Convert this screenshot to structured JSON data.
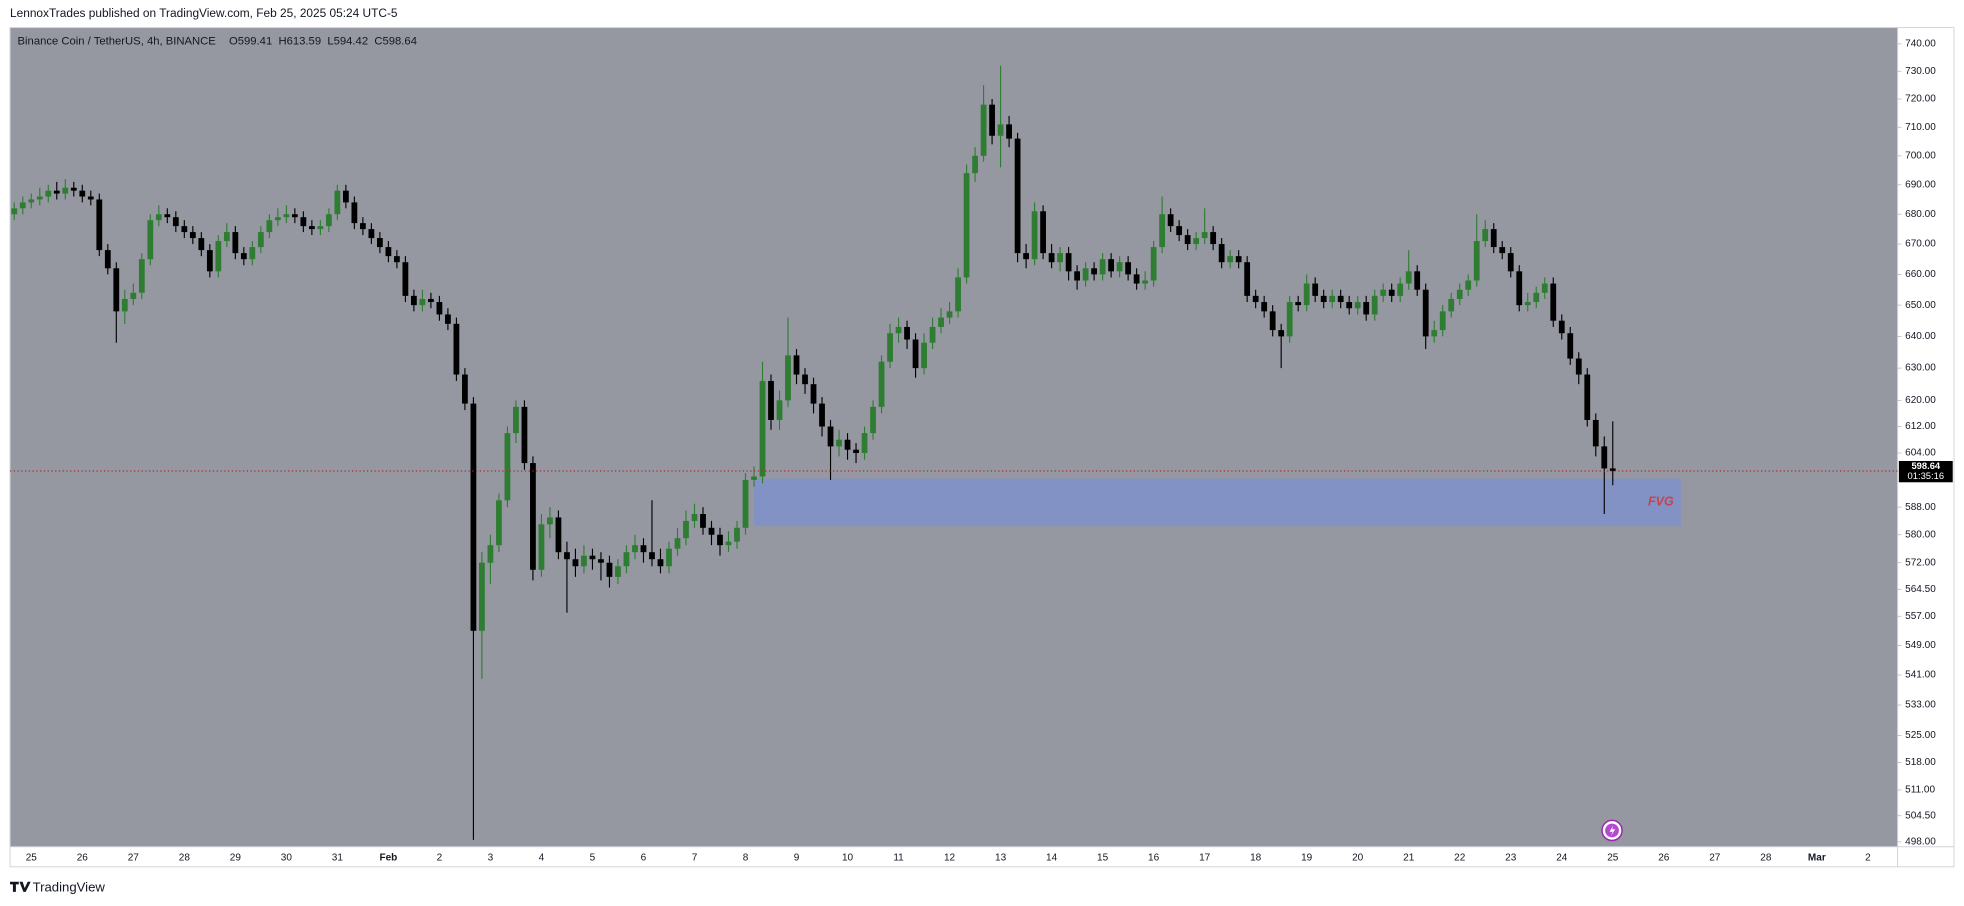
{
  "header": {
    "publisher": "LennoxTrades published on TradingView.com, Feb 25, 2025 05:24 UTC-5"
  },
  "footer": {
    "brand": "TradingView"
  },
  "chart_data": {
    "type": "candlestick",
    "title": "Binance Coin / TetherUS, 4h, BINANCE",
    "ohlc_labels": [
      "O",
      "H",
      "L",
      "C"
    ],
    "background": "#9598a1",
    "up_color": "#2e7d32",
    "down_color": "#000000",
    "price_line_color": "#b22833",
    "log_scale": true,
    "ylim": [
      496.8,
      746
    ],
    "yticks": [
      {
        "value": 740,
        "label": "740.00"
      },
      {
        "value": 730,
        "label": "730.00"
      },
      {
        "value": 720,
        "label": "720.00"
      },
      {
        "value": 710,
        "label": "710.00"
      },
      {
        "value": 700,
        "label": "700.00"
      },
      {
        "value": 690,
        "label": "690.00"
      },
      {
        "value": 680,
        "label": "680.00"
      },
      {
        "value": 670,
        "label": "670.00"
      },
      {
        "value": 660,
        "label": "660.00"
      },
      {
        "value": 650,
        "label": "650.00"
      },
      {
        "value": 640,
        "label": "640.00"
      },
      {
        "value": 630,
        "label": "630.00"
      },
      {
        "value": 620,
        "label": "620.00"
      },
      {
        "value": 612,
        "label": "612.00"
      },
      {
        "value": 604,
        "label": "604.00"
      },
      {
        "value": 588,
        "label": "588.00"
      },
      {
        "value": 580,
        "label": "580.00"
      },
      {
        "value": 572,
        "label": "572.00"
      },
      {
        "value": 564.5,
        "label": "564.50"
      },
      {
        "value": 557,
        "label": "557.00"
      },
      {
        "value": 549,
        "label": "549.00"
      },
      {
        "value": 541,
        "label": "541.00"
      },
      {
        "value": 533,
        "label": "533.00"
      },
      {
        "value": 525,
        "label": "525.00"
      },
      {
        "value": 518,
        "label": "518.00"
      },
      {
        "value": 511,
        "label": "511.00"
      },
      {
        "value": 504.5,
        "label": "504.50"
      },
      {
        "value": 498,
        "label": "498.00"
      }
    ],
    "countdown": "01:35:16",
    "zone": {
      "label": "FVG",
      "top": 596.4,
      "bottom": 582.5,
      "color": "#8392c4",
      "label_color": "#c2454f"
    },
    "categories": [
      null,
      null,
      "25",
      null,
      null,
      null,
      null,
      null,
      "26",
      null,
      null,
      null,
      null,
      null,
      "27",
      null,
      null,
      null,
      null,
      null,
      "28",
      null,
      null,
      null,
      null,
      null,
      "29",
      null,
      null,
      null,
      null,
      null,
      "30",
      null,
      null,
      null,
      null,
      null,
      "31",
      null,
      null,
      null,
      null,
      null,
      "Feb",
      null,
      null,
      null,
      null,
      null,
      "2",
      null,
      null,
      null,
      null,
      null,
      "3",
      null,
      null,
      null,
      null,
      null,
      "4",
      null,
      null,
      null,
      null,
      null,
      "5",
      null,
      null,
      null,
      null,
      null,
      "6",
      null,
      null,
      null,
      null,
      null,
      "7",
      null,
      null,
      null,
      null,
      null,
      "8",
      null,
      null,
      null,
      null,
      null,
      "9",
      null,
      null,
      null,
      null,
      null,
      "10",
      null,
      null,
      null,
      null,
      null,
      "11",
      null,
      null,
      null,
      null,
      null,
      "12",
      null,
      null,
      null,
      null,
      null,
      "13",
      null,
      null,
      null,
      null,
      null,
      "14",
      null,
      null,
      null,
      null,
      null,
      "15",
      null,
      null,
      null,
      null,
      null,
      "16",
      null,
      null,
      null,
      null,
      null,
      "17",
      null,
      null,
      null,
      null,
      null,
      "18",
      null,
      null,
      null,
      null,
      null,
      "19",
      null,
      null,
      null,
      null,
      null,
      "20",
      null,
      null,
      null,
      null,
      null,
      "21",
      null,
      null,
      null,
      null,
      null,
      "22",
      null,
      null,
      null,
      null,
      null,
      "23",
      null,
      null,
      null,
      null,
      null,
      "24",
      null,
      null,
      null,
      null,
      null,
      "25",
      null,
      null,
      null,
      null,
      null,
      "26",
      null,
      null,
      null,
      null,
      null,
      "27",
      null,
      null,
      null,
      null,
      null,
      "28",
      null,
      null,
      null,
      null,
      null,
      "Mar",
      null,
      null,
      null,
      null,
      null,
      "2",
      null,
      null,
      null
    ],
    "open": [
      680,
      682,
      684,
      685,
      686,
      688,
      687,
      689,
      688,
      686,
      685,
      668,
      662,
      648,
      652,
      654,
      665,
      678,
      680,
      679,
      676,
      674,
      672,
      668,
      661,
      671,
      674,
      667,
      665,
      669,
      674,
      678,
      679,
      680,
      679,
      676,
      675,
      676,
      680,
      688,
      684,
      677,
      675,
      672,
      669,
      666,
      664,
      653,
      650,
      652,
      651,
      647,
      644,
      628,
      619,
      553,
      572,
      577,
      590,
      610,
      618,
      601,
      570,
      583,
      585,
      575,
      573,
      571,
      574,
      573,
      572,
      568,
      571,
      575,
      577,
      575,
      573,
      571,
      576,
      579,
      584,
      586,
      582,
      580,
      577,
      578,
      582,
      596,
      597,
      626,
      614,
      620,
      634,
      628,
      625,
      619,
      612,
      606,
      608,
      605,
      604,
      610,
      618,
      632,
      641,
      643,
      639,
      630,
      638,
      643,
      646,
      648,
      659,
      694,
      700,
      718,
      707,
      711,
      706,
      667,
      665,
      681,
      667,
      664,
      667,
      661,
      658,
      662,
      660,
      665,
      661,
      664,
      660,
      657,
      658,
      669,
      680,
      676,
      673,
      670,
      672,
      674,
      670,
      664,
      666,
      664,
      653,
      651,
      648,
      642,
      640,
      651,
      650,
      657,
      653,
      651,
      653,
      651,
      649,
      651,
      647,
      653,
      655,
      653,
      657,
      661,
      655,
      640,
      642,
      648,
      652,
      655,
      658,
      671,
      675,
      669,
      667,
      661,
      650,
      651,
      654,
      657,
      645,
      641,
      633,
      628,
      614,
      606,
      599.41,
      null,
      null,
      null,
      null,
      null,
      null,
      null,
      null,
      null,
      null,
      null,
      null,
      null,
      null,
      null,
      null,
      null,
      null,
      null,
      null,
      null,
      null,
      null,
      null,
      null,
      null,
      null,
      null,
      null,
      null,
      null,
      null,
      null
    ],
    "high": [
      684,
      686,
      687,
      689,
      690,
      691,
      692,
      691,
      690,
      688,
      687,
      670,
      664,
      655,
      657,
      667,
      680,
      683,
      682,
      681,
      678,
      676,
      674,
      670,
      673,
      677,
      676,
      669,
      671,
      676,
      680,
      682,
      683,
      682,
      681,
      678,
      678,
      682,
      690,
      690,
      686,
      679,
      677,
      674,
      671,
      668,
      666,
      655,
      655,
      654,
      653,
      649,
      646,
      630,
      621,
      575,
      580,
      592,
      612,
      620,
      620,
      603,
      586,
      588,
      587,
      578,
      576,
      577,
      576,
      575,
      574,
      573,
      577,
      580,
      579,
      590,
      576,
      578,
      582,
      587,
      589,
      588,
      584,
      582,
      581,
      584,
      598,
      600,
      632,
      628,
      623,
      646,
      636,
      630,
      627,
      621,
      614,
      611,
      610,
      607,
      612,
      620,
      634,
      644,
      646,
      645,
      641,
      641,
      646,
      649,
      651,
      662,
      697,
      703,
      725,
      720,
      732,
      714,
      708,
      670,
      684,
      683,
      670,
      669,
      669,
      663,
      664,
      664,
      667,
      667,
      666,
      666,
      662,
      661,
      671,
      686,
      682,
      678,
      675,
      674,
      682,
      676,
      672,
      668,
      668,
      666,
      655,
      653,
      650,
      644,
      653,
      653,
      660,
      659,
      655,
      655,
      655,
      653,
      653,
      653,
      655,
      657,
      657,
      659,
      668,
      663,
      657,
      645,
      650,
      654,
      657,
      660,
      680,
      678,
      677,
      671,
      669,
      663,
      654,
      656,
      659,
      659,
      647,
      643,
      635,
      630,
      616,
      609,
      613.59,
      null,
      null,
      null,
      null,
      null,
      null,
      null,
      null,
      null,
      null,
      null,
      null,
      null,
      null,
      null,
      null,
      null,
      null,
      null,
      null,
      null,
      null,
      null,
      null,
      null,
      null,
      null,
      null,
      null,
      null,
      null,
      null,
      null
    ],
    "low": [
      678,
      680,
      682,
      683,
      684,
      685,
      685,
      686,
      684,
      683,
      666,
      660,
      638,
      644,
      650,
      652,
      663,
      676,
      677,
      674,
      672,
      670,
      666,
      659,
      659,
      669,
      665,
      663,
      663,
      667,
      672,
      676,
      677,
      677,
      674,
      673,
      673,
      674,
      678,
      682,
      675,
      673,
      670,
      667,
      664,
      662,
      651,
      648,
      648,
      649,
      645,
      642,
      626,
      617,
      498.5,
      540,
      566,
      575,
      588,
      607,
      599,
      567,
      568,
      579,
      573,
      558,
      568,
      569,
      570,
      567,
      565,
      566,
      569,
      573,
      572,
      571,
      569,
      569,
      574,
      577,
      582,
      580,
      577,
      574,
      575,
      576,
      580,
      594,
      595,
      611,
      611,
      618,
      625,
      622,
      616,
      609,
      596,
      603,
      602,
      601,
      602,
      608,
      616,
      630,
      638,
      636,
      627,
      628,
      636,
      641,
      644,
      646,
      657,
      691,
      698,
      704,
      696,
      703,
      664,
      662,
      663,
      665,
      662,
      661,
      658,
      655,
      656,
      658,
      658,
      659,
      659,
      658,
      655,
      655,
      656,
      667,
      674,
      671,
      668,
      668,
      670,
      668,
      662,
      662,
      662,
      651,
      649,
      646,
      640,
      630,
      638,
      648,
      648,
      651,
      649,
      649,
      649,
      647,
      647,
      645,
      645,
      651,
      651,
      651,
      655,
      653,
      636,
      638,
      640,
      646,
      650,
      653,
      656,
      669,
      667,
      665,
      659,
      648,
      648,
      649,
      652,
      643,
      639,
      631,
      625,
      612,
      603,
      586,
      594.42,
      null,
      null,
      null,
      null,
      null,
      null,
      null,
      null,
      null,
      null,
      null,
      null,
      null,
      null,
      null,
      null,
      null,
      null,
      null,
      null,
      null,
      null,
      null,
      null,
      null,
      null,
      null,
      null,
      null,
      null,
      null,
      null,
      null
    ],
    "close": [
      682,
      684,
      685,
      686,
      688,
      687,
      689,
      688,
      686,
      685,
      668,
      662,
      648,
      652,
      654,
      665,
      678,
      680,
      679,
      676,
      674,
      672,
      668,
      661,
      671,
      674,
      667,
      665,
      669,
      674,
      678,
      679,
      680,
      679,
      676,
      675,
      676,
      680,
      688,
      684,
      677,
      675,
      672,
      669,
      666,
      664,
      653,
      650,
      652,
      651,
      647,
      644,
      628,
      619,
      553,
      572,
      577,
      590,
      610,
      618,
      601,
      570,
      583,
      585,
      575,
      573,
      571,
      574,
      573,
      572,
      568,
      571,
      575,
      577,
      575,
      573,
      571,
      576,
      579,
      584,
      586,
      582,
      580,
      577,
      578,
      582,
      596,
      597,
      626,
      614,
      620,
      634,
      628,
      625,
      619,
      612,
      606,
      608,
      605,
      604,
      610,
      618,
      632,
      641,
      643,
      639,
      630,
      638,
      643,
      646,
      648,
      659,
      694,
      700,
      718,
      707,
      711,
      706,
      667,
      665,
      681,
      667,
      664,
      667,
      661,
      658,
      662,
      660,
      665,
      661,
      664,
      660,
      657,
      658,
      669,
      680,
      676,
      673,
      670,
      672,
      674,
      670,
      664,
      666,
      664,
      653,
      651,
      648,
      642,
      640,
      651,
      650,
      657,
      653,
      651,
      653,
      651,
      649,
      651,
      647,
      653,
      655,
      653,
      657,
      661,
      655,
      640,
      642,
      648,
      652,
      655,
      658,
      671,
      675,
      669,
      667,
      661,
      650,
      651,
      654,
      657,
      645,
      641,
      633,
      628,
      614,
      606,
      599.41,
      598.64,
      null,
      null,
      null,
      null,
      null,
      null,
      null,
      null,
      null,
      null,
      null,
      null,
      null,
      null,
      null,
      null,
      null,
      null,
      null,
      null,
      null,
      null,
      null,
      null,
      null,
      null,
      null,
      null,
      null,
      null,
      null,
      null,
      null
    ]
  }
}
